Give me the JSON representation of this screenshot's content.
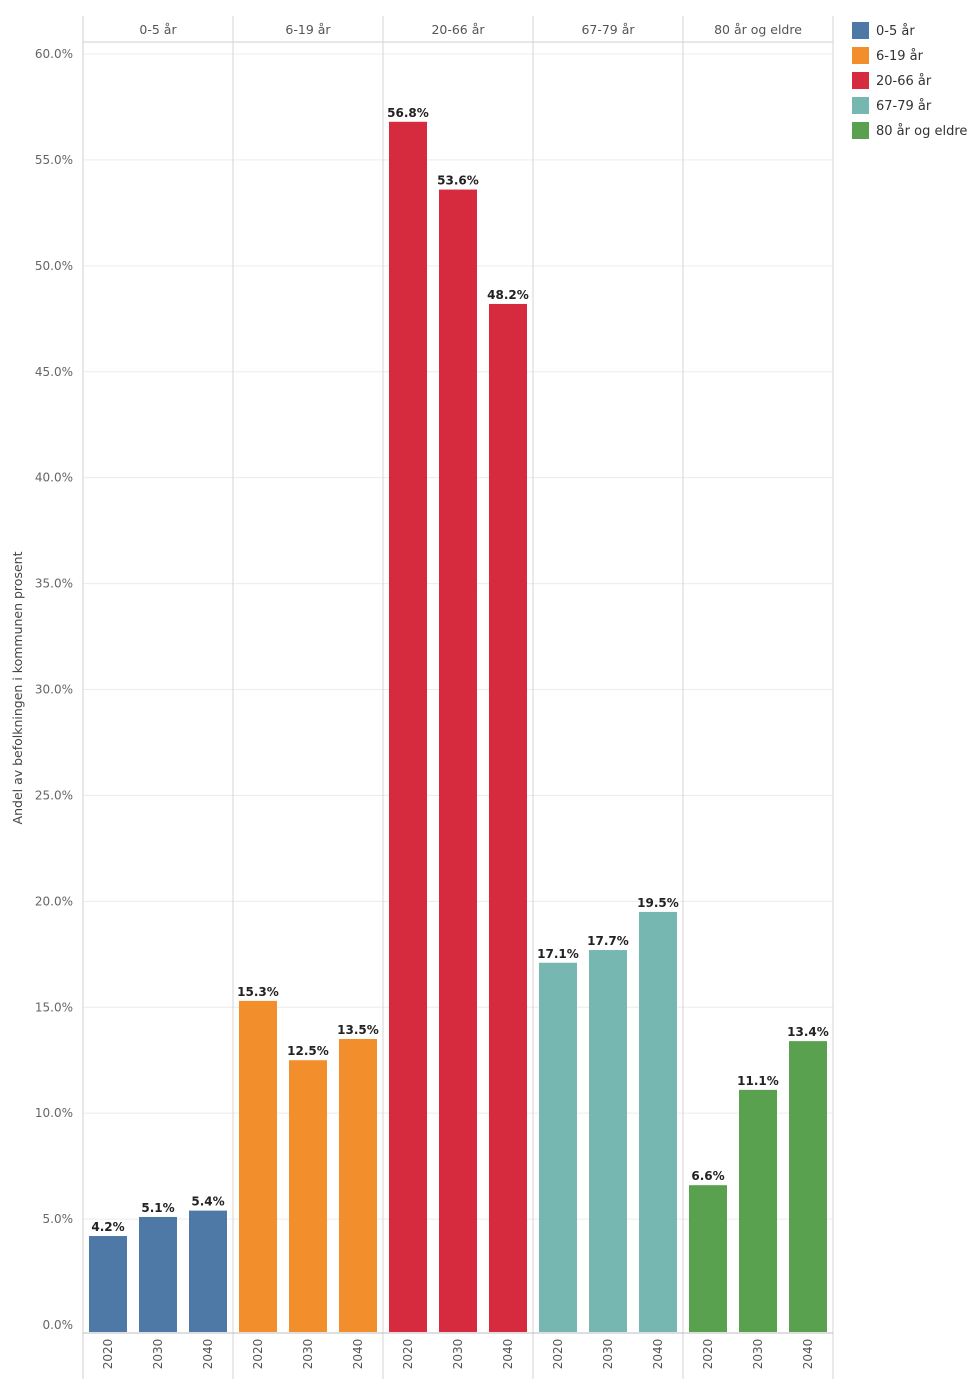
{
  "chart_data": {
    "type": "bar",
    "title": "",
    "ylabel": "Andel av befolkningen i kommunen prosent",
    "xlabel": "",
    "ylim": [
      0,
      60
    ],
    "y_ticks": [
      "0.0%",
      "5.0%",
      "10.0%",
      "15.0%",
      "20.0%",
      "25.0%",
      "30.0%",
      "35.0%",
      "40.0%",
      "45.0%",
      "50.0%",
      "55.0%",
      "60.0%"
    ],
    "grid": true,
    "legend_position": "right",
    "panels": [
      {
        "name": "0-5 år",
        "color": "#4e79a7",
        "categories": [
          "2020",
          "2030",
          "2040"
        ],
        "values": [
          4.2,
          5.1,
          5.4
        ],
        "labels": [
          "4.2%",
          "5.1%",
          "5.4%"
        ]
      },
      {
        "name": "6-19 år",
        "color": "#f28e2b",
        "categories": [
          "2020",
          "2030",
          "2040"
        ],
        "values": [
          15.3,
          12.5,
          13.5
        ],
        "labels": [
          "15.3%",
          "12.5%",
          "13.5%"
        ]
      },
      {
        "name": "20-66 år",
        "color": "#d62a3e",
        "categories": [
          "2020",
          "2030",
          "2040"
        ],
        "values": [
          56.8,
          53.6,
          48.2
        ],
        "labels": [
          "56.8%",
          "53.6%",
          "48.2%"
        ]
      },
      {
        "name": "67-79 år",
        "color": "#76b7b2",
        "categories": [
          "2020",
          "2030",
          "2040"
        ],
        "values": [
          17.1,
          17.7,
          19.5
        ],
        "labels": [
          "17.1%",
          "17.7%",
          "19.5%"
        ]
      },
      {
        "name": "80 år og eldre",
        "color": "#59a14f",
        "categories": [
          "2020",
          "2030",
          "2040"
        ],
        "values": [
          6.6,
          11.1,
          13.4
        ],
        "labels": [
          "6.6%",
          "11.1%",
          "13.4%"
        ]
      }
    ]
  }
}
